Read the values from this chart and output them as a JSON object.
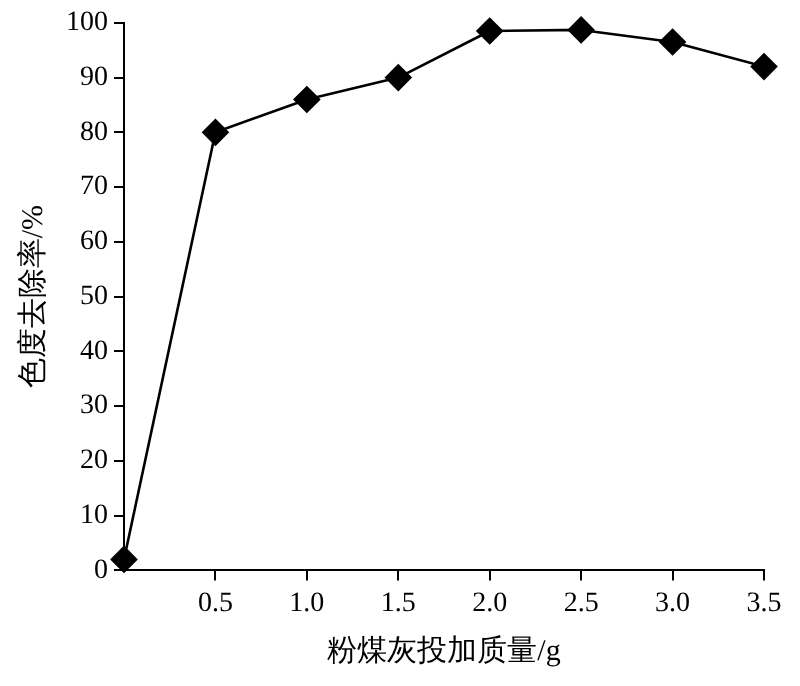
{
  "chart_data": {
    "type": "line",
    "xlabel": "粉煤灰投加质量/g",
    "ylabel": "色度去除率/%",
    "x": [
      0,
      0.5,
      1.0,
      1.5,
      2.0,
      2.5,
      3.0,
      3.5
    ],
    "series": [
      {
        "color": "#000000",
        "values": [
          2,
          80,
          86,
          90,
          98.5,
          98.7,
          96.5,
          92
        ]
      }
    ],
    "xlim": [
      0,
      3.5
    ],
    "ylim": [
      0,
      100
    ],
    "xticks": [
      0.5,
      {
        "value": 1,
        "label": "1.0"
      },
      1.5,
      {
        "value": 2,
        "label": "2.0"
      },
      2.5,
      {
        "value": 3,
        "label": "3.0"
      },
      3.5
    ],
    "yticks": [
      0,
      10,
      20,
      30,
      40,
      50,
      60,
      70,
      80,
      90,
      100
    ],
    "grid": false,
    "legend": false,
    "marker": "diamond",
    "line_style": "solid"
  }
}
